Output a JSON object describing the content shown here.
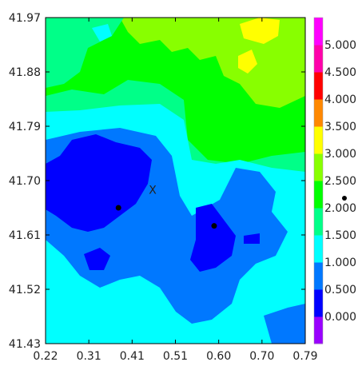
{
  "chart_data": {
    "type": "heatmap",
    "title": "",
    "xlabel": "",
    "ylabel": "",
    "xlim": [
      0.22,
      0.79
    ],
    "ylim": [
      41.43,
      41.97
    ],
    "x_ticks": [
      "0.22",
      "0.31",
      "0.41",
      "0.51",
      "0.60",
      "0.70",
      "0.79"
    ],
    "y_ticks": [
      "41.97",
      "41.88",
      "41.79",
      "41.70",
      "41.61",
      "41.52",
      "41.43"
    ],
    "colorbar": {
      "levels": [
        "0.000",
        "0.500",
        "1.000",
        "1.500",
        "2.000",
        "2.500",
        "3.000",
        "3.500",
        "4.000",
        "4.500",
        "5.000"
      ],
      "colors": [
        "#9a00ff",
        "#0000ff",
        "#0078ff",
        "#00ffff",
        "#00ff88",
        "#00ff00",
        "#88ff00",
        "#ffff00",
        "#ff8800",
        "#ff0000",
        "#ff00aa",
        "#ff00ff"
      ]
    },
    "markers": [
      {
        "x": 0.38,
        "y": 41.655,
        "type": "dot"
      },
      {
        "x": 0.59,
        "y": 41.625,
        "type": "dot"
      },
      {
        "x": 0.455,
        "y": 41.685,
        "type": "cross",
        "label": "X"
      }
    ],
    "outside_marker": {
      "type": "dot"
    }
  }
}
